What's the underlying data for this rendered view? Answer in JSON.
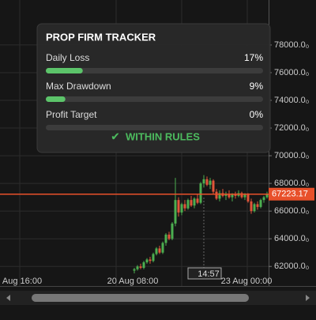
{
  "panel": {
    "title": "PROP FIRM TRACKER",
    "rows": [
      {
        "label": "Daily Loss",
        "value": 17,
        "value_label": "17%"
      },
      {
        "label": "Max Drawdown",
        "value": 9,
        "value_label": "9%"
      },
      {
        "label": "Profit Target",
        "value": 0,
        "value_label": "0%"
      }
    ],
    "status": "WITHIN RULES",
    "status_icon": "✔"
  },
  "chart": {
    "type": "candlestick",
    "ylim": [
      60700,
      81250
    ],
    "yticks": [
      {
        "value": 78000,
        "label": "78000.0₀"
      },
      {
        "value": 76000,
        "label": "76000.0₀"
      },
      {
        "value": 74000,
        "label": "74000.0₀"
      },
      {
        "value": 72000,
        "label": "72000.0₀"
      },
      {
        "value": 70000,
        "label": "70000.0₀"
      },
      {
        "value": 68000,
        "label": "68000.0₀"
      },
      {
        "value": 66000,
        "label": "66000.0₀"
      },
      {
        "value": 64000,
        "label": "64000.0₀"
      },
      {
        "value": 62000,
        "label": "62000.0₀"
      }
    ],
    "x_labels": [
      "Aug 16:00",
      "20 Aug 08:00",
      "23 Aug 00:00"
    ],
    "crosshair_label": "14:57",
    "last_price": 67223.17,
    "up_color": "#4caf50",
    "down_color": "#e0553a",
    "price_line_color": "#e8502a",
    "candles": [
      [
        61700,
        61900,
        61500,
        61800
      ],
      [
        61800,
        62100,
        61700,
        62000
      ],
      [
        62000,
        62200,
        61800,
        61900
      ],
      [
        61900,
        62400,
        61800,
        62300
      ],
      [
        62300,
        62600,
        62200,
        62500
      ],
      [
        62500,
        62700,
        62200,
        62400
      ],
      [
        62400,
        63000,
        62300,
        62900
      ],
      [
        62900,
        63400,
        62800,
        63300
      ],
      [
        63300,
        63500,
        62900,
        63000
      ],
      [
        63000,
        63800,
        62900,
        63700
      ],
      [
        63700,
        64400,
        63500,
        64300
      ],
      [
        64300,
        64500,
        63900,
        64000
      ],
      [
        64000,
        65200,
        63900,
        65100
      ],
      [
        65100,
        68400,
        64900,
        66800
      ],
      [
        66800,
        67000,
        65600,
        65900
      ],
      [
        65900,
        66600,
        65700,
        66500
      ],
      [
        66500,
        66800,
        66000,
        66200
      ],
      [
        66200,
        66900,
        66100,
        66800
      ],
      [
        66800,
        67100,
        66300,
        66400
      ],
      [
        66400,
        67000,
        66200,
        66900
      ],
      [
        66900,
        67200,
        66500,
        66600
      ],
      [
        66600,
        68100,
        66500,
        68000
      ],
      [
        68000,
        68600,
        67700,
        68300
      ],
      [
        68300,
        68500,
        67800,
        67900
      ],
      [
        67900,
        68400,
        67600,
        68200
      ],
      [
        68200,
        68300,
        67200,
        67400
      ],
      [
        67400,
        67600,
        66800,
        66900
      ],
      [
        66900,
        67500,
        66700,
        67300
      ],
      [
        67300,
        67600,
        67000,
        67100
      ],
      [
        67100,
        67400,
        66800,
        67200
      ],
      [
        67200,
        67500,
        66900,
        67000
      ],
      [
        67000,
        67300,
        66700,
        67200
      ],
      [
        67200,
        67400,
        66900,
        67100
      ],
      [
        67100,
        67500,
        67000,
        67300
      ],
      [
        67300,
        67400,
        66900,
        67000
      ],
      [
        67000,
        67300,
        66800,
        67200
      ],
      [
        67200,
        67300,
        66600,
        66700
      ],
      [
        66700,
        66900,
        65800,
        66000
      ],
      [
        66000,
        66600,
        65900,
        66500
      ],
      [
        66500,
        66700,
        66100,
        66300
      ],
      [
        66300,
        66900,
        66200,
        66800
      ],
      [
        66800,
        67100,
        66600,
        67000
      ],
      [
        67000,
        67400,
        66900,
        67223.17
      ]
    ]
  }
}
